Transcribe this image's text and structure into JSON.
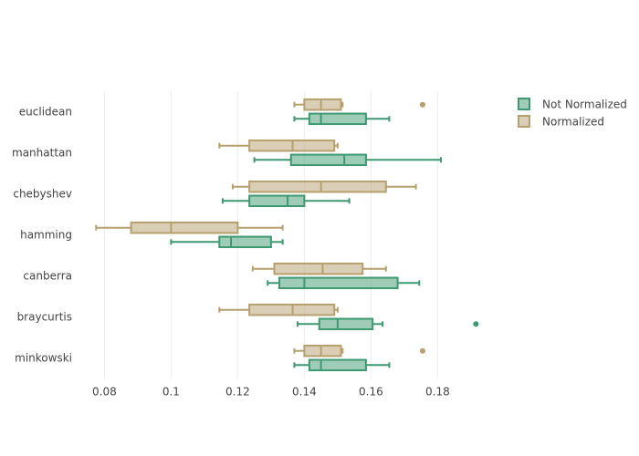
{
  "chart_data": {
    "type": "box",
    "orientation": "horizontal",
    "categories": [
      "euclidean",
      "manhattan",
      "chebyshev",
      "hamming",
      "canberra",
      "braycurtis",
      "minkowski"
    ],
    "xlim": [
      0.0725,
      0.1925
    ],
    "x_ticks": [
      "0.08",
      "0.1",
      "0.12",
      "0.14",
      "0.16",
      "0.18"
    ],
    "x_tick_values": [
      0.08,
      0.1,
      0.12,
      0.14,
      0.16,
      0.18
    ],
    "grid": true,
    "legend_position": "top-right",
    "series": [
      {
        "name": "Not Normalized",
        "color": "#3d9970",
        "boxes": [
          {
            "min": 0.137,
            "q1": 0.1415,
            "median": 0.145,
            "q3": 0.1585,
            "max": 0.1655,
            "outliers": []
          },
          {
            "min": 0.125,
            "q1": 0.136,
            "median": 0.152,
            "q3": 0.1585,
            "max": 0.181,
            "outliers": []
          },
          {
            "min": 0.1155,
            "q1": 0.1235,
            "median": 0.135,
            "q3": 0.14,
            "max": 0.1535,
            "outliers": []
          },
          {
            "min": 0.1,
            "q1": 0.1145,
            "median": 0.118,
            "q3": 0.13,
            "max": 0.1335,
            "outliers": []
          },
          {
            "min": 0.129,
            "q1": 0.1325,
            "median": 0.14,
            "q3": 0.168,
            "max": 0.1745,
            "outliers": []
          },
          {
            "min": 0.138,
            "q1": 0.1445,
            "median": 0.15,
            "q3": 0.1605,
            "max": 0.1635,
            "outliers": [
              0.1915
            ]
          },
          {
            "min": 0.137,
            "q1": 0.1415,
            "median": 0.145,
            "q3": 0.1585,
            "max": 0.1655,
            "outliers": []
          }
        ]
      },
      {
        "name": "Normalized",
        "color": "#b5a06e",
        "boxes": [
          {
            "min": 0.137,
            "q1": 0.14,
            "median": 0.145,
            "q3": 0.151,
            "max": 0.1515,
            "outliers": [
              0.1755
            ]
          },
          {
            "min": 0.1145,
            "q1": 0.1235,
            "median": 0.1365,
            "q3": 0.149,
            "max": 0.15,
            "outliers": []
          },
          {
            "min": 0.1185,
            "q1": 0.1235,
            "median": 0.145,
            "q3": 0.1645,
            "max": 0.1735,
            "outliers": []
          },
          {
            "min": 0.0775,
            "q1": 0.088,
            "median": 0.1,
            "q3": 0.12,
            "max": 0.1335,
            "outliers": []
          },
          {
            "min": 0.1245,
            "q1": 0.131,
            "median": 0.1455,
            "q3": 0.1575,
            "max": 0.1645,
            "outliers": []
          },
          {
            "min": 0.1145,
            "q1": 0.1235,
            "median": 0.1365,
            "q3": 0.149,
            "max": 0.15,
            "outliers": []
          },
          {
            "min": 0.137,
            "q1": 0.14,
            "median": 0.145,
            "q3": 0.151,
            "max": 0.1515,
            "outliers": [
              0.1755
            ]
          }
        ]
      }
    ]
  }
}
